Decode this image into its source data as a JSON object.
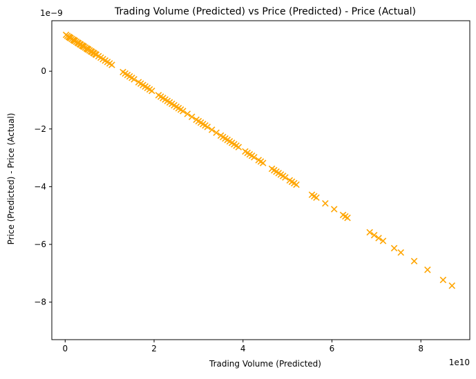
{
  "chart_data": {
    "type": "scatter",
    "title": "Trading Volume (Predicted) vs Price (Predicted) - Price (Actual)",
    "xlabel": "Trading Volume (Predicted)",
    "ylabel": "Price (Predicted) - Price (Actual)",
    "x_offset_label": "1e10",
    "y_offset_label": "1e−9",
    "xlim": [
      -0.3,
      9.1
    ],
    "ylim": [
      -9.3,
      1.75
    ],
    "x_ticks": [
      0,
      2,
      4,
      6,
      8
    ],
    "x_tick_labels": [
      "0",
      "2",
      "4",
      "6",
      "8"
    ],
    "y_ticks": [
      -8,
      -6,
      -4,
      -2,
      0
    ],
    "y_tick_labels": [
      "−8",
      "−6",
      "−4",
      "−2",
      "0"
    ],
    "grid": false,
    "marker": "x",
    "color": "#ffa500",
    "series": [
      {
        "x": [
          0.02,
          0.05,
          0.08,
          0.1,
          0.12,
          0.15,
          0.18,
          0.2,
          0.22,
          0.25,
          0.28,
          0.3,
          0.33,
          0.35,
          0.38,
          0.4,
          0.42,
          0.45,
          0.48,
          0.5,
          0.52,
          0.55,
          0.58,
          0.6,
          0.63,
          0.65,
          0.68,
          0.7,
          0.75,
          0.8,
          0.85,
          0.9,
          0.95,
          1.0,
          1.05,
          1.3,
          1.35,
          1.4,
          1.45,
          1.5,
          1.55,
          1.65,
          1.7,
          1.75,
          1.8,
          1.85,
          1.9,
          1.95,
          2.1,
          2.15,
          2.2,
          2.25,
          2.3,
          2.35,
          2.4,
          2.45,
          2.5,
          2.55,
          2.6,
          2.65,
          2.75,
          2.85,
          2.95,
          3.0,
          3.05,
          3.1,
          3.15,
          3.2,
          3.3,
          3.4,
          3.5,
          3.55,
          3.6,
          3.65,
          3.7,
          3.75,
          3.8,
          3.85,
          3.9,
          4.05,
          4.1,
          4.15,
          4.2,
          4.25,
          4.35,
          4.4,
          4.45,
          4.65,
          4.7,
          4.75,
          4.8,
          4.85,
          4.9,
          4.95,
          5.05,
          5.1,
          5.15,
          5.2,
          5.55,
          5.6,
          5.65,
          5.85,
          6.05,
          6.25,
          6.3,
          6.35,
          6.85,
          6.95,
          7.05,
          7.15,
          7.4,
          7.55,
          7.85,
          8.15,
          8.5,
          8.7
        ],
        "y": [
          1.26,
          1.22,
          1.19,
          1.17,
          1.15,
          1.12,
          1.09,
          1.07,
          1.05,
          1.02,
          0.99,
          0.97,
          0.94,
          0.92,
          0.89,
          0.87,
          0.85,
          0.82,
          0.79,
          0.77,
          0.75,
          0.72,
          0.69,
          0.67,
          0.64,
          0.62,
          0.59,
          0.57,
          0.52,
          0.47,
          0.42,
          0.37,
          0.32,
          0.27,
          0.22,
          -0.03,
          -0.08,
          -0.13,
          -0.18,
          -0.23,
          -0.28,
          -0.38,
          -0.43,
          -0.48,
          -0.53,
          -0.58,
          -0.63,
          -0.68,
          -0.83,
          -0.88,
          -0.93,
          -0.98,
          -1.03,
          -1.08,
          -1.13,
          -1.18,
          -1.23,
          -1.28,
          -1.33,
          -1.38,
          -1.48,
          -1.58,
          -1.68,
          -1.73,
          -1.78,
          -1.83,
          -1.88,
          -1.93,
          -2.03,
          -2.13,
          -2.23,
          -2.28,
          -2.33,
          -2.38,
          -2.43,
          -2.48,
          -2.53,
          -2.58,
          -2.63,
          -2.78,
          -2.83,
          -2.88,
          -2.93,
          -2.98,
          -3.08,
          -3.13,
          -3.18,
          -3.38,
          -3.43,
          -3.48,
          -3.53,
          -3.58,
          -3.63,
          -3.68,
          -3.78,
          -3.83,
          -3.88,
          -3.93,
          -4.28,
          -4.33,
          -4.38,
          -4.58,
          -4.78,
          -4.98,
          -5.03,
          -5.08,
          -5.58,
          -5.68,
          -5.78,
          -5.88,
          -6.13,
          -6.28,
          -6.58,
          -6.88,
          -7.23,
          -7.43
        ]
      }
    ]
  }
}
